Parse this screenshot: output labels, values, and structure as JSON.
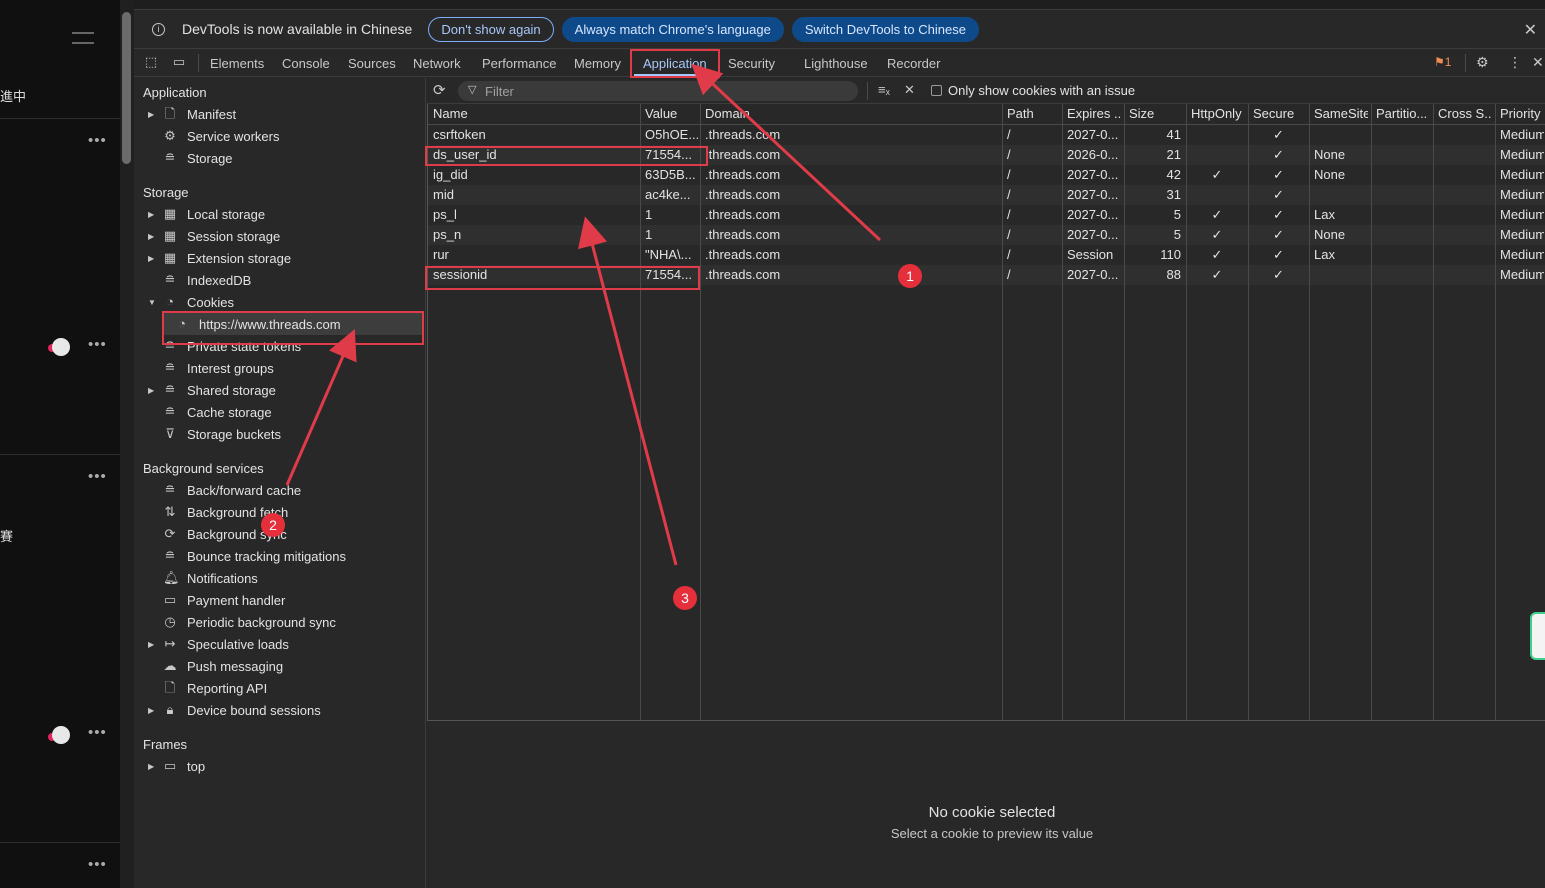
{
  "page_strip": {
    "cjk_top": "進中",
    "cjk_mid": "賽"
  },
  "infobar": {
    "message": "DevTools is now available in Chinese",
    "btn_dont_show": "Don't show again",
    "btn_match": "Always match Chrome's language",
    "btn_switch": "Switch DevTools to Chinese",
    "close": "✕"
  },
  "tabs": [
    "Elements",
    "Console",
    "Sources",
    "Network",
    "Performance",
    "Memory",
    "Application",
    "Security",
    "Lighthouse",
    "Recorder"
  ],
  "issue_count": "1",
  "sidebar": {
    "h_application": "Application",
    "manifest": "Manifest",
    "service_workers": "Service workers",
    "storage_item": "Storage",
    "h_storage": "Storage",
    "local_storage": "Local storage",
    "session_storage": "Session storage",
    "extension_storage": "Extension storage",
    "indexeddb": "IndexedDB",
    "cookies": "Cookies",
    "cookie_origin": "https://www.threads.com",
    "private_state_tokens": "Private state tokens",
    "interest_groups": "Interest groups",
    "shared_storage": "Shared storage",
    "cache_storage": "Cache storage",
    "storage_buckets": "Storage buckets",
    "h_background": "Background services",
    "bfcache": "Back/forward cache",
    "bg_fetch": "Background fetch",
    "bg_sync": "Background sync",
    "bounce": "Bounce tracking mitigations",
    "notifications": "Notifications",
    "payment": "Payment handler",
    "periodic": "Periodic background sync",
    "speculative": "Speculative loads",
    "push": "Push messaging",
    "reporting": "Reporting API",
    "device_bound": "Device bound sessions",
    "h_frames": "Frames",
    "top": "top"
  },
  "toolbar": {
    "filter_placeholder": "Filter",
    "only_issue_label": "Only show cookies with an issue"
  },
  "table": {
    "headers": [
      "Name",
      "Value",
      "Domain",
      "Path",
      "Expires ...",
      "Size",
      "HttpOnly",
      "Secure",
      "SameSite",
      "Partitio...",
      "Cross S...",
      "Priority"
    ],
    "rows": [
      [
        "csrftoken",
        "O5hOE...",
        ".threads.com",
        "/",
        "2027-0...",
        "41",
        "",
        "✓",
        "",
        "",
        "",
        "Medium"
      ],
      [
        "ds_user_id",
        "71554...",
        ".threads.com",
        "/",
        "2026-0...",
        "21",
        "",
        "✓",
        "None",
        "",
        "",
        "Medium"
      ],
      [
        "ig_did",
        "63D5B...",
        ".threads.com",
        "/",
        "2027-0...",
        "42",
        "✓",
        "✓",
        "None",
        "",
        "",
        "Medium"
      ],
      [
        "mid",
        "ac4ke...",
        ".threads.com",
        "/",
        "2027-0...",
        "31",
        "",
        "✓",
        "",
        "",
        "",
        "Medium"
      ],
      [
        "ps_l",
        "1",
        ".threads.com",
        "/",
        "2027-0...",
        "5",
        "✓",
        "✓",
        "Lax",
        "",
        "",
        "Medium"
      ],
      [
        "ps_n",
        "1",
        ".threads.com",
        "/",
        "2027-0...",
        "5",
        "✓",
        "✓",
        "None",
        "",
        "",
        "Medium"
      ],
      [
        "rur",
        "\"NHA\\...",
        ".threads.com",
        "/",
        "Session",
        "110",
        "✓",
        "✓",
        "Lax",
        "",
        "",
        "Medium"
      ],
      [
        "sessionid",
        "71554...",
        ".threads.com",
        "/",
        "2027-0...",
        "88",
        "✓",
        "✓",
        "",
        "",
        "",
        "Medium"
      ]
    ]
  },
  "preview": {
    "title": "No cookie selected",
    "subtitle": "Select a cookie to preview its value"
  },
  "annotations": {
    "badge1": "1",
    "badge2": "2",
    "badge3": "3",
    "color": "#e5303c"
  }
}
